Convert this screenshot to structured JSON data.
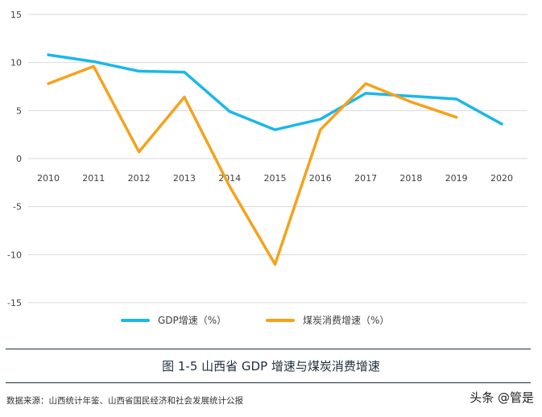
{
  "chart_data": {
    "type": "line",
    "title": "图 1-5  山西省 GDP 增速与煤炭消费增速",
    "xlabel": "",
    "ylabel": "",
    "x": [
      "2010",
      "2011",
      "2012",
      "2013",
      "2014",
      "2015",
      "2016",
      "2017",
      "2018",
      "2019",
      "2020"
    ],
    "ylim": [
      -15,
      15
    ],
    "yticks": [
      15,
      10,
      5,
      0,
      -5,
      -10,
      -15
    ],
    "grid": true,
    "legend_position": "bottom",
    "series": [
      {
        "name": "GDP增速（%）",
        "color": "#1ab8e8",
        "values": [
          10.8,
          10.1,
          9.1,
          9.0,
          4.9,
          3.0,
          4.1,
          6.8,
          6.5,
          6.2,
          3.6
        ]
      },
      {
        "name": "煤炭消费增速（%）",
        "color": "#f5a21c",
        "values": [
          7.8,
          9.6,
          0.7,
          6.4,
          -2.9,
          -11.0,
          3.0,
          7.8,
          5.9,
          4.3,
          null
        ]
      }
    ]
  },
  "caption": "图 1-5  山西省 GDP 增速与煤炭消费增速",
  "source": "数据来源：山西统计年鉴、山西省国民经济和社会发展统计公报",
  "watermark": "头条 @管是"
}
